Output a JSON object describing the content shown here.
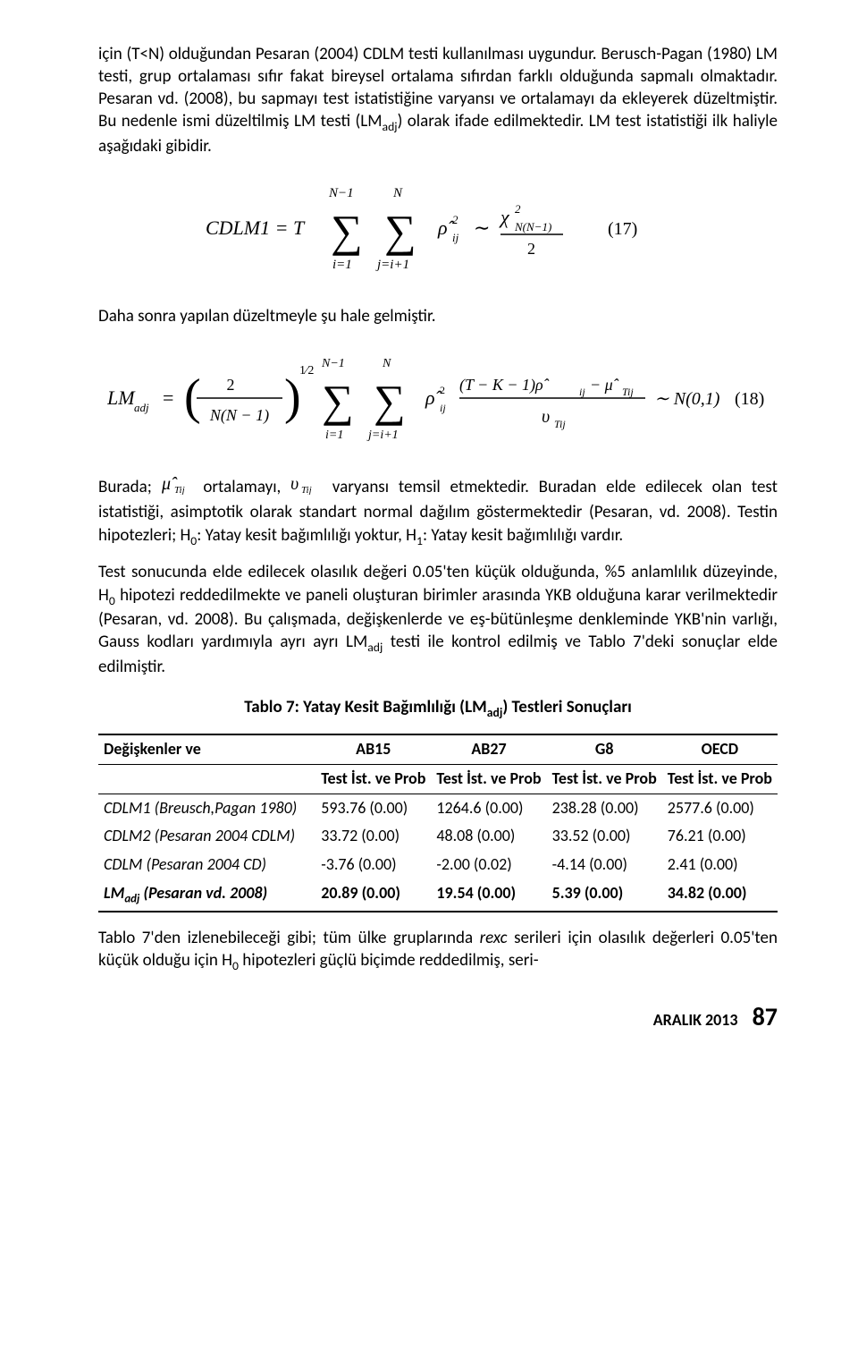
{
  "paragraphs": {
    "p1_a": "için (T<N) olduğundan Pesaran (2004) CDLM testi kullanılması uygundur. Berusch-Pagan (1980) LM testi, grup ortalaması sıfır fakat bireysel ortalama sıfırdan farklı olduğunda sapmalı olmaktadır. Pesaran vd. (2008), bu sapmayı test istatistiğine varyansı ve ortalamayı da ekleyerek düzeltmiştir. Bu nedenle ismi düzeltilmiş LM testi (LM",
    "p1_sub": "adj",
    "p1_b": ") olarak ifade edilmektedir. LM test istatistiği ilk haliyle aşağıdaki gibidir.",
    "p2": "Daha sonra yapılan düzeltmeyle şu hale gelmiştir.",
    "p3_a": "Burada; ",
    "p3_b": " ortalamayı, ",
    "p3_c": " varyansı temsil etmektedir. Buradan elde edilecek olan test istatistiği, asimptotik olarak standart normal dağılım göstermektedir (Pesaran, vd. 2008). Testin hipotezleri; H",
    "p3_sub0": "0",
    "p3_d": ": Yatay kesit bağımlılığı yoktur,  H",
    "p3_sub1": "1",
    "p3_e": ": Yatay kesit bağımlılığı vardır.",
    "p4_a": "Test sonucunda elde edilecek olasılık değeri 0.05'ten küçük olduğunda, %5 anlamlılık düzeyinde, H",
    "p4_sub0": "0",
    "p4_b": " hipotezi reddedilmekte ve paneli oluşturan birimler arasında YKB olduğuna karar verilmektedir (Pesaran, vd. 2008). Bu çalışmada, değişkenlerde ve eş-bütünleşme denkleminde YKB'nin varlığı, Gauss kodları yardımıyla ayrı ayrı LM",
    "p4_subadj": "adj",
    "p4_c": " testi ile kontrol edilmiş ve Tablo 7'deki sonuçlar elde edilmiştir.",
    "p5_a": "Tablo 7'den izlenebileceği gibi; tüm ülke gruplarında ",
    "p5_it": "rexc",
    "p5_b": " serileri için olasılık değerleri 0.05'ten küçük olduğu için H",
    "p5_sub0": "0",
    "p5_c": " hipotezleri güçlü biçimde reddedilmiş, seri-"
  },
  "equations": {
    "eq17": {
      "font_family": "Cambria Math, Times New Roman, serif",
      "font_size": 22,
      "color": "#000000",
      "text_left": "CDLM1 = T",
      "sum_upper1": "N−1",
      "sum_lower1": "i=1",
      "sum_upper2": "N",
      "sum_lower2": "j=i+1",
      "hat": "ρ̂",
      "rho_sub": "ij",
      "rho_sup": "2",
      "tilde": "∼",
      "chi": "χ",
      "chi_sub": "N(N−1)",
      "chi_sup": "2",
      "frac_denom": "2",
      "eqn_no": "(17)"
    },
    "eq18": {
      "font_family": "Cambria Math, Times New Roman, serif",
      "font_size": 21,
      "color": "#000000",
      "lhs": "LM",
      "lhs_sub": "adj",
      "eq": "=",
      "frac1_num": "2",
      "frac1_den": "N(N − 1)",
      "half_exp": "1⁄2",
      "sum_upper1": "N−1",
      "sum_lower1": "i=1",
      "sum_upper2": "N",
      "sum_lower2": "j=i+1",
      "rho": "ρ̂",
      "rho_sub": "ij",
      "rho_sup": "2",
      "num_a": "(T − K − 1)ρ̂",
      "num_sub": "ij",
      "minus": "− μ̂",
      "mu_sub": "Tij",
      "den": "υ",
      "den_sub": "Tij",
      "tilde": "∼ N(0,1)",
      "eqn_no": "(18)"
    },
    "inline_mu": {
      "text": "μ̂",
      "sub": "Tij"
    },
    "inline_v": {
      "text": "υ",
      "sub": "Tij"
    }
  },
  "table": {
    "title_a": "Tablo 7: Yatay Kesit Bağımlılığı (LM",
    "title_sub": "adj",
    "title_b": ") Testleri Sonuçları",
    "columns": [
      "Değişkenler ve",
      "AB15",
      "AB27",
      "G8",
      "OECD"
    ],
    "subheader": [
      "",
      "Test İst. ve Prob",
      "Test İst. ve Prob",
      "Test İst. ve Prob",
      "Test İst. ve Prob"
    ],
    "rows": [
      {
        "label": "CDLM1 (Breusch,Pagan 1980)",
        "style": "italic",
        "c1": "593.76 (0.00)",
        "c2": "1264.6 (0.00)",
        "c3": "238.28 (0.00)",
        "c4": "2577.6 (0.00)"
      },
      {
        "label": "CDLM2 (Pesaran 2004 CDLM)",
        "style": "italic",
        "c1": "33.72 (0.00)",
        "c2": "48.08 (0.00)",
        "c3": "33.52 (0.00)",
        "c4": "76.21 (0.00)"
      },
      {
        "label": "CDLM (Pesaran 2004 CD)",
        "style": "italic",
        "c1": "-3.76 (0.00)",
        "c2": "-2.00 (0.02)",
        "c3": "-4.14 (0.00)",
        "c4": "2.41 (0.00)"
      },
      {
        "label": "LM",
        "label_sub": "adj",
        "label_b": " (Pesaran vd. 2008)",
        "style": "italic",
        "c1": "20.89 (0.00)",
        "c2": "19.54 (0.00)",
        "c3": "5.39 (0.00)",
        "c4": "34.82 (0.00)",
        "bold": true
      }
    ],
    "col_widths": [
      "32%",
      "17%",
      "17%",
      "17%",
      "17%"
    ]
  },
  "footer": {
    "date": "ARALIK 2013",
    "page": "87"
  }
}
